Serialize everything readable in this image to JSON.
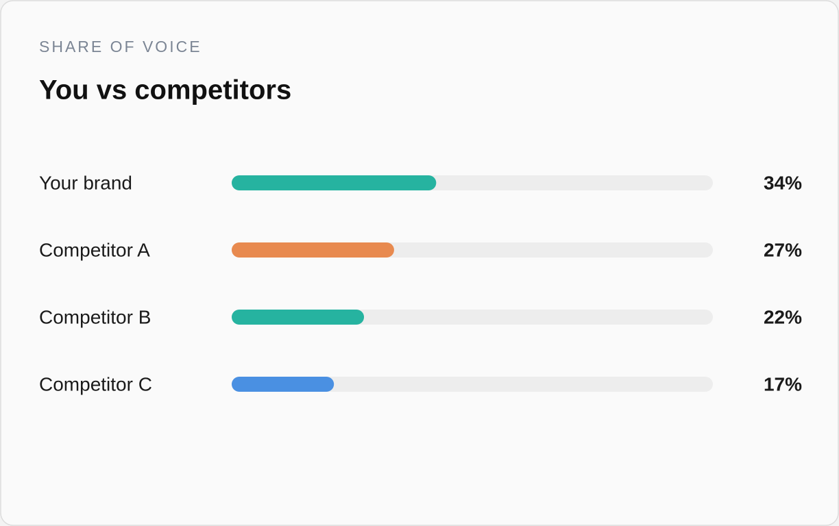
{
  "chart_data": {
    "type": "bar",
    "orientation": "horizontal",
    "subtitle": "SHARE OF VOICE",
    "title": "You vs competitors",
    "categories": [
      "Your brand",
      "Competitor A",
      "Competitor B",
      "Competitor C"
    ],
    "values": [
      34,
      27,
      22,
      17
    ],
    "value_labels": [
      "34%",
      "27%",
      "22%",
      "17%"
    ],
    "colors": [
      "#26b3a0",
      "#e88a4f",
      "#26b3a0",
      "#4a90e2"
    ],
    "xlim": [
      0,
      80
    ]
  }
}
